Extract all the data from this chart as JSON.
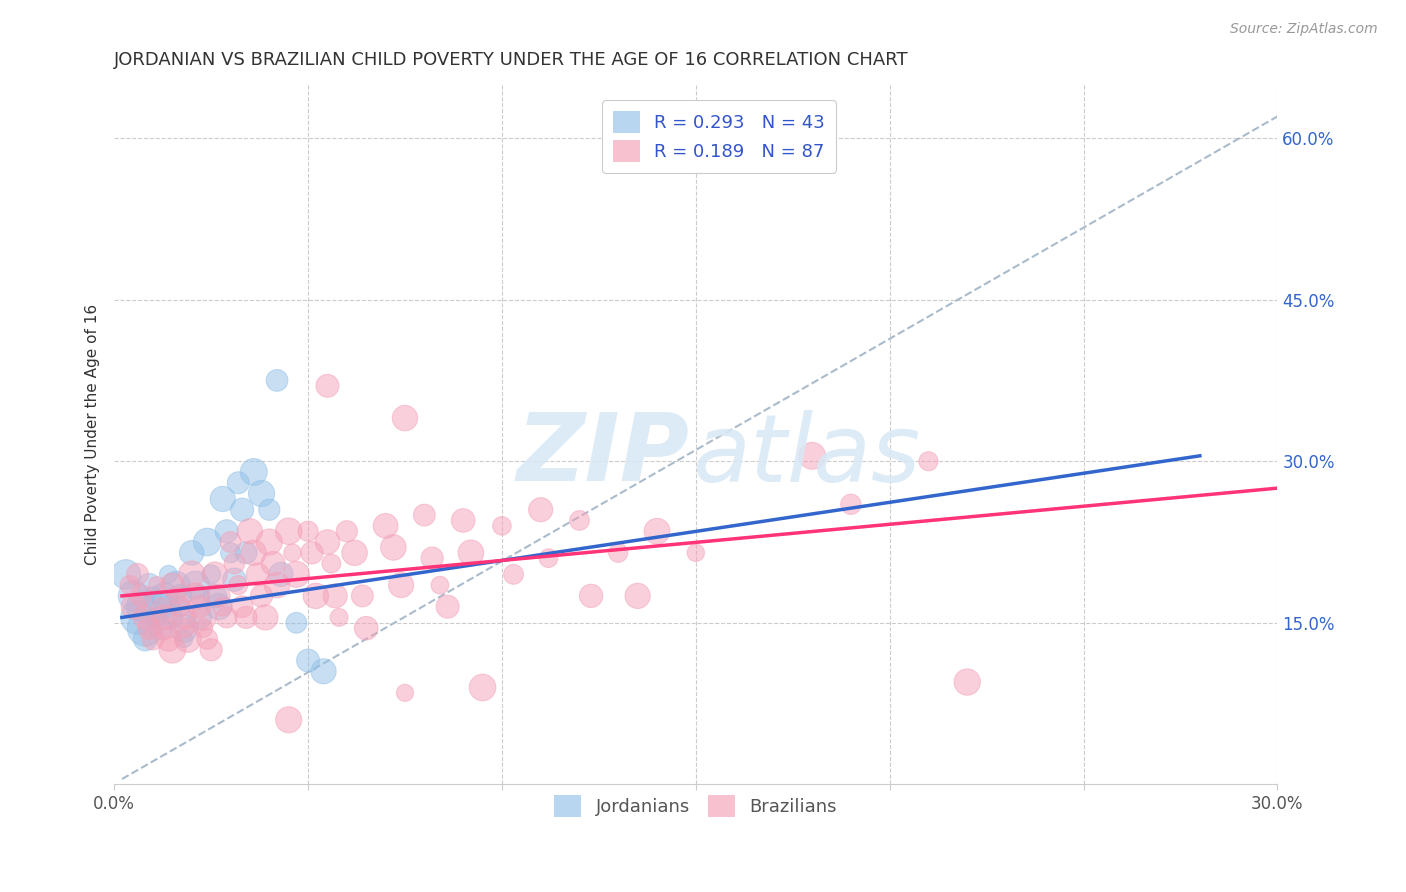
{
  "title": "JORDANIAN VS BRAZILIAN CHILD POVERTY UNDER THE AGE OF 16 CORRELATION CHART",
  "source": "Source: ZipAtlas.com",
  "ylabel": "Child Poverty Under the Age of 16",
  "xlim": [
    0.0,
    30.0
  ],
  "ylim": [
    0.0,
    65.0
  ],
  "xtick_positions": [
    0.0,
    5.0,
    10.0,
    15.0,
    20.0,
    25.0,
    30.0
  ],
  "xtick_labels": [
    "0.0%",
    "",
    "",
    "",
    "",
    "",
    "30.0%"
  ],
  "ytick_values_right": [
    15.0,
    30.0,
    45.0,
    60.0
  ],
  "ytick_labels_right": [
    "15.0%",
    "30.0%",
    "45.0%",
    "60.0%"
  ],
  "blue_color": "#92C0E8",
  "pink_color": "#F4A0B8",
  "trend_blue": "#3366CC",
  "trend_pink": "#FF3377",
  "dashed_line_color": "#AABBCC",
  "background_color": "#FFFFFF",
  "grid_color": "#CCCCCC",
  "title_color": "#333333",
  "source_color": "#999999",
  "axis_label_color": "#333333",
  "legend_text_color": "#3355CC",
  "jordanian_points": [
    [
      0.3,
      19.5
    ],
    [
      0.5,
      17.5
    ],
    [
      0.6,
      15.5
    ],
    [
      0.7,
      16.5
    ],
    [
      0.8,
      14.5
    ],
    [
      0.8,
      13.5
    ],
    [
      0.9,
      18.5
    ],
    [
      1.0,
      17.5
    ],
    [
      1.1,
      15.5
    ],
    [
      1.2,
      14.5
    ],
    [
      1.2,
      16.5
    ],
    [
      1.3,
      17.5
    ],
    [
      1.4,
      16.5
    ],
    [
      1.4,
      19.5
    ],
    [
      1.5,
      15.5
    ],
    [
      1.6,
      18.5
    ],
    [
      1.7,
      16.5
    ],
    [
      1.7,
      17.5
    ],
    [
      1.8,
      14.5
    ],
    [
      1.8,
      13.5
    ],
    [
      2.0,
      21.5
    ],
    [
      2.1,
      18.5
    ],
    [
      2.2,
      17.5
    ],
    [
      2.2,
      15.5
    ],
    [
      2.4,
      22.5
    ],
    [
      2.5,
      19.5
    ],
    [
      2.6,
      17.5
    ],
    [
      2.7,
      16.5
    ],
    [
      2.8,
      26.5
    ],
    [
      2.9,
      23.5
    ],
    [
      3.0,
      21.5
    ],
    [
      3.1,
      19.0
    ],
    [
      3.2,
      28.0
    ],
    [
      3.3,
      25.5
    ],
    [
      3.4,
      21.5
    ],
    [
      3.6,
      29.0
    ],
    [
      3.8,
      27.0
    ],
    [
      4.0,
      25.5
    ],
    [
      4.3,
      19.5
    ],
    [
      4.7,
      15.0
    ],
    [
      5.0,
      11.5
    ],
    [
      4.2,
      37.5
    ],
    [
      5.4,
      10.5
    ]
  ],
  "brazilian_points": [
    [
      0.4,
      18.5
    ],
    [
      0.5,
      16.5
    ],
    [
      0.6,
      19.5
    ],
    [
      0.7,
      17.5
    ],
    [
      0.8,
      15.5
    ],
    [
      0.9,
      14.5
    ],
    [
      1.0,
      13.5
    ],
    [
      1.1,
      18.5
    ],
    [
      1.2,
      16.5
    ],
    [
      1.3,
      15.5
    ],
    [
      1.3,
      14.5
    ],
    [
      1.4,
      13.5
    ],
    [
      1.5,
      12.5
    ],
    [
      1.5,
      18.5
    ],
    [
      1.6,
      17.5
    ],
    [
      1.7,
      16.5
    ],
    [
      1.8,
      15.5
    ],
    [
      1.8,
      14.5
    ],
    [
      1.9,
      13.5
    ],
    [
      2.0,
      19.5
    ],
    [
      2.1,
      17.5
    ],
    [
      2.2,
      16.5
    ],
    [
      2.3,
      15.5
    ],
    [
      2.3,
      14.5
    ],
    [
      2.4,
      13.5
    ],
    [
      2.5,
      12.5
    ],
    [
      2.6,
      19.5
    ],
    [
      2.7,
      17.5
    ],
    [
      2.8,
      16.5
    ],
    [
      2.9,
      15.5
    ],
    [
      3.0,
      22.5
    ],
    [
      3.1,
      20.5
    ],
    [
      3.2,
      18.5
    ],
    [
      3.3,
      16.5
    ],
    [
      3.4,
      15.5
    ],
    [
      3.5,
      23.5
    ],
    [
      3.6,
      21.5
    ],
    [
      3.7,
      19.5
    ],
    [
      3.8,
      17.5
    ],
    [
      3.9,
      15.5
    ],
    [
      4.0,
      22.5
    ],
    [
      4.1,
      20.5
    ],
    [
      4.2,
      18.5
    ],
    [
      4.5,
      23.5
    ],
    [
      4.6,
      21.5
    ],
    [
      4.7,
      19.5
    ],
    [
      5.0,
      23.5
    ],
    [
      5.1,
      21.5
    ],
    [
      5.2,
      17.5
    ],
    [
      5.5,
      22.5
    ],
    [
      5.6,
      20.5
    ],
    [
      5.7,
      17.5
    ],
    [
      5.8,
      15.5
    ],
    [
      6.0,
      23.5
    ],
    [
      6.2,
      21.5
    ],
    [
      6.4,
      17.5
    ],
    [
      6.5,
      14.5
    ],
    [
      7.0,
      24.0
    ],
    [
      7.2,
      22.0
    ],
    [
      7.4,
      18.5
    ],
    [
      7.5,
      8.5
    ],
    [
      8.0,
      25.0
    ],
    [
      8.2,
      21.0
    ],
    [
      8.4,
      18.5
    ],
    [
      8.6,
      16.5
    ],
    [
      9.0,
      24.5
    ],
    [
      9.2,
      21.5
    ],
    [
      9.5,
      9.0
    ],
    [
      10.0,
      24.0
    ],
    [
      10.3,
      19.5
    ],
    [
      11.0,
      25.5
    ],
    [
      11.2,
      21.0
    ],
    [
      12.0,
      24.5
    ],
    [
      12.3,
      17.5
    ],
    [
      13.0,
      21.5
    ],
    [
      13.5,
      17.5
    ],
    [
      14.0,
      23.5
    ],
    [
      15.0,
      21.5
    ],
    [
      5.5,
      37.0
    ],
    [
      7.5,
      34.0
    ],
    [
      18.0,
      30.5
    ],
    [
      19.0,
      26.0
    ],
    [
      21.0,
      30.0
    ],
    [
      4.5,
      6.0
    ],
    [
      22.0,
      9.5
    ]
  ],
  "blue_trend": [
    0.2,
    28.0,
    15.5,
    30.5
  ],
  "pink_trend": [
    0.2,
    30.0,
    17.5,
    27.5
  ],
  "dashed_line": [
    0.2,
    30.0,
    0.5,
    62.0
  ]
}
